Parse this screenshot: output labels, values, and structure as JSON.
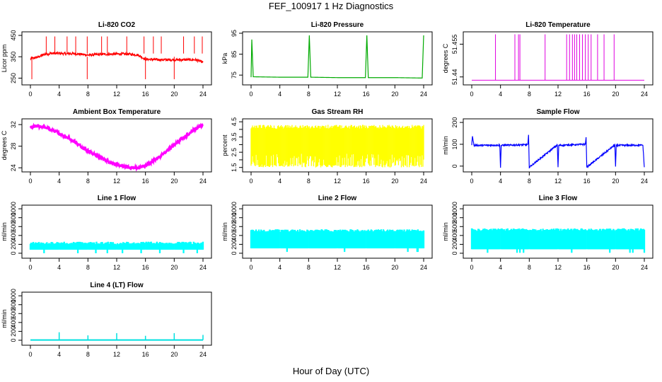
{
  "figure": {
    "title": "FEF_100917  1 Hz Diagnostics",
    "xlabel": "Hour of Day (UTC)"
  },
  "chart_data": [
    {
      "type": "line",
      "title": "Li-820 CO2",
      "ylabel": "Licor ppm",
      "color": "#ff0000",
      "xlim": [
        0,
        24
      ],
      "xticks": [
        0,
        4,
        8,
        12,
        16,
        20,
        24
      ],
      "ylim": [
        225,
        460
      ],
      "yticks": [
        250,
        350,
        450
      ],
      "x": [
        0,
        1,
        2,
        3,
        4,
        5,
        6,
        7,
        8,
        9,
        10,
        11,
        12,
        13,
        14,
        15,
        16,
        17,
        18,
        19,
        20,
        21,
        22,
        23,
        24
      ],
      "values": [
        340,
        348,
        362,
        366,
        366,
        364,
        365,
        362,
        358,
        360,
        362,
        362,
        363,
        363,
        362,
        358,
        338,
        337,
        336,
        336,
        336,
        336,
        336,
        336,
        324
      ]
    },
    {
      "type": "line",
      "title": "Li-820 Pressure",
      "ylabel": "kPa",
      "color": "#00aa00",
      "xlim": [
        0,
        24
      ],
      "xticks": [
        0,
        4,
        8,
        12,
        16,
        20,
        24
      ],
      "ylim": [
        71,
        95
      ],
      "yticks": [
        75,
        85,
        95
      ],
      "x": [
        0,
        0.1,
        0.3,
        4,
        7.9,
        8.1,
        8.3,
        12,
        15.9,
        16.1,
        16.3,
        20,
        23.8,
        24
      ],
      "values": [
        74,
        92,
        74.2,
        74.0,
        74.0,
        94,
        74.0,
        73.8,
        73.8,
        94,
        73.8,
        73.8,
        73.6,
        94
      ]
    },
    {
      "type": "line",
      "title": "Li-820 Temperature",
      "ylabel": "degrees C",
      "color": "#e000e0",
      "xlim": [
        0,
        24
      ],
      "xticks": [
        0,
        4,
        8,
        12,
        16,
        20,
        24
      ],
      "ylim": [
        51.437,
        51.46
      ],
      "yticks": [
        51.44,
        51.455
      ],
      "baseline": 51.4385,
      "peak": 51.4595,
      "spikes": [
        3.3,
        6.0,
        6.5,
        6.7,
        10.2,
        13.2,
        13.6,
        14.0,
        14.3,
        14.6,
        15.0,
        15.4,
        15.8,
        16.2,
        16.6,
        17.5,
        18.4,
        19.8
      ]
    },
    {
      "type": "line",
      "title": "Ambient Box Temperature",
      "ylabel": "degrees C",
      "color": "#ff00ff",
      "xlim": [
        0,
        24
      ],
      "xticks": [
        0,
        4,
        8,
        12,
        16,
        20,
        24
      ],
      "ylim": [
        23.5,
        32.8
      ],
      "yticks": [
        24,
        28,
        32
      ],
      "x": [
        0,
        1,
        2,
        3,
        4,
        5,
        6,
        7,
        8,
        9,
        10,
        11,
        12,
        13,
        14,
        15,
        16,
        17,
        18,
        19,
        20,
        21,
        22,
        23,
        24
      ],
      "values": [
        31.5,
        31.7,
        31.5,
        31.0,
        30.4,
        29.7,
        28.9,
        28.0,
        27.2,
        26.4,
        25.7,
        25.1,
        24.6,
        24.2,
        24.0,
        24.0,
        24.4,
        25.2,
        26.1,
        27.1,
        28.2,
        29.3,
        30.3,
        31.3,
        32.0
      ]
    },
    {
      "type": "area",
      "title": "Gas Stream RH",
      "ylabel": "percent",
      "color": "#ffff00",
      "xlim": [
        0,
        24
      ],
      "xticks": [
        0,
        4,
        8,
        12,
        16,
        20,
        24
      ],
      "ylim": [
        1.3,
        4.6
      ],
      "yticks": [
        1.5,
        2.5,
        3.5,
        4.5
      ],
      "yticks_minor": [
        2.0,
        3.0,
        4.0
      ],
      "low": 1.5,
      "high": 4.3
    },
    {
      "type": "line",
      "title": "Sample Flow",
      "ylabel": "ml/min",
      "color": "#0000ff",
      "xlim": [
        0,
        24
      ],
      "xticks": [
        0,
        4,
        8,
        12,
        16,
        20,
        24
      ],
      "ylim": [
        -20,
        210
      ],
      "yticks": [
        0,
        100,
        200
      ],
      "x": [
        0,
        0.1,
        0.3,
        3.9,
        4.0,
        4.1,
        7.8,
        7.9,
        8.0,
        11.9,
        12.0,
        12.1,
        15.8,
        15.9,
        16.0,
        19.9,
        20.0,
        20.1,
        23.8,
        24.0
      ],
      "values": [
        95,
        140,
        95,
        96,
        -5,
        95,
        98,
        140,
        -5,
        97,
        -5,
        95,
        100,
        135,
        -5,
        97,
        -5,
        95,
        96,
        -5
      ]
    },
    {
      "type": "area",
      "title": "Line 1 Flow",
      "ylabel": "ml/min",
      "color": "#00ffff",
      "xlim": [
        0,
        24
      ],
      "xticks": [
        0,
        4,
        8,
        12,
        16,
        20,
        24
      ],
      "ylim": [
        -80,
        1050
      ],
      "yticks": [
        0,
        200,
        400,
        600,
        800,
        1000
      ],
      "low": 80,
      "high": 260,
      "gaps": [
        4,
        8,
        12,
        16,
        20,
        24
      ]
    },
    {
      "type": "area",
      "title": "Line 2 Flow",
      "ylabel": "ml/min",
      "color": "#00ffff",
      "xlim": [
        0,
        24
      ],
      "xticks": [
        0,
        4,
        8,
        12,
        16,
        20,
        24
      ],
      "ylim": [
        -80,
        1050
      ],
      "yticks": [
        0,
        200,
        400,
        600,
        800,
        1000
      ],
      "low": 110,
      "high": 540,
      "gaps": [
        4,
        8,
        12,
        16,
        20,
        24
      ]
    },
    {
      "type": "area",
      "title": "Line 3 Flow",
      "ylabel": "ml/min",
      "color": "#00ffff",
      "xlim": [
        0,
        24
      ],
      "xticks": [
        0,
        4,
        8,
        12,
        16,
        20,
        24
      ],
      "ylim": [
        -80,
        1050
      ],
      "yticks": [
        0,
        200,
        400,
        600,
        800,
        1000
      ],
      "low": 90,
      "high": 560,
      "gaps": [
        4,
        8,
        12,
        16,
        20,
        24
      ]
    },
    {
      "type": "line",
      "title": "Line 4 (LT) Flow",
      "ylabel": "ml/min",
      "color": "#00e0e0",
      "xlim": [
        0,
        24
      ],
      "xticks": [
        0,
        4,
        8,
        12,
        16,
        20,
        24
      ],
      "ylim": [
        -80,
        1050
      ],
      "yticks": [
        0,
        200,
        400,
        600,
        800,
        1000
      ],
      "baseline": 5,
      "peaks": [
        {
          "x": 4,
          "y": 180
        },
        {
          "x": 8,
          "y": 110
        },
        {
          "x": 12,
          "y": 160
        },
        {
          "x": 16,
          "y": 100
        },
        {
          "x": 20,
          "y": 160
        },
        {
          "x": 24,
          "y": 120
        }
      ]
    }
  ]
}
